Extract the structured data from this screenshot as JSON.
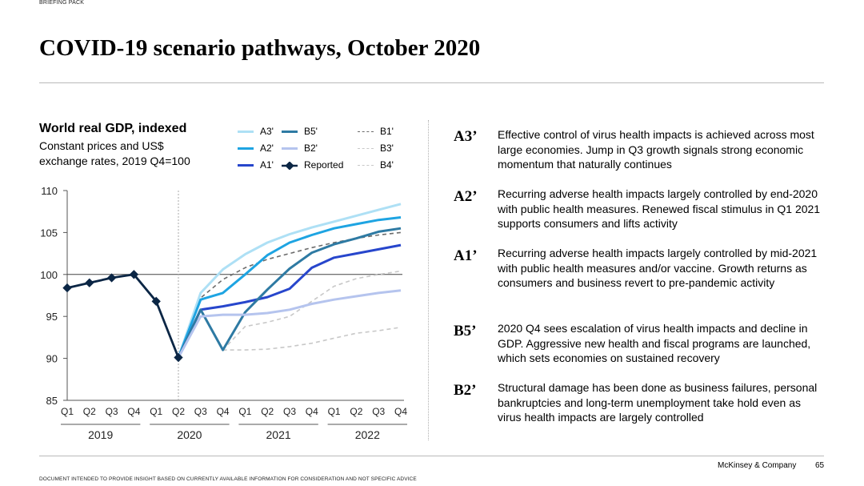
{
  "header": {
    "brief": "BRIEFING PACK",
    "title": "COVID-19 scenario pathways, October 2020"
  },
  "chart_data": {
    "type": "line",
    "title": "World real GDP, indexed",
    "subtitle": "Constant prices and US$ exchange rates, 2019 Q4=100",
    "subtitle_lines": [
      "Constant prices and US$",
      "exchange rates, 2019 Q4=100"
    ],
    "quarters": [
      "Q1",
      "Q2",
      "Q3",
      "Q4",
      "Q1",
      "Q2",
      "Q3",
      "Q4",
      "Q1",
      "Q2",
      "Q3",
      "Q4",
      "Q1",
      "Q2",
      "Q3",
      "Q4"
    ],
    "years": [
      "2019",
      "2020",
      "2021",
      "2022"
    ],
    "yticks": [
      110,
      105,
      100,
      95,
      90,
      85
    ],
    "ylim": [
      85,
      110
    ],
    "reference_line": 100,
    "series": [
      {
        "name": "Reported",
        "color": "#0b2645",
        "style": "solid-marker",
        "start": 0,
        "values": [
          98.4,
          99.0,
          99.6,
          100.0,
          96.8,
          90.1
        ]
      },
      {
        "name": "A3'",
        "color": "#aee0f5",
        "style": "solid",
        "start": 5,
        "values": [
          90.1,
          97.8,
          100.6,
          102.4,
          103.8,
          104.8,
          105.6,
          106.3,
          107.0,
          107.7,
          108.4
        ]
      },
      {
        "name": "A2'",
        "color": "#1ea4e2",
        "style": "solid",
        "start": 5,
        "values": [
          90.1,
          97.0,
          97.8,
          100.0,
          102.3,
          103.8,
          104.7,
          105.5,
          106.0,
          106.5,
          106.8
        ]
      },
      {
        "name": "A1'",
        "color": "#2746cc",
        "style": "solid",
        "start": 5,
        "values": [
          90.1,
          95.8,
          96.2,
          96.7,
          97.3,
          98.3,
          100.8,
          102.0,
          102.5,
          103.0,
          103.5
        ]
      },
      {
        "name": "B5'",
        "color": "#2e7aa3",
        "style": "solid",
        "start": 5,
        "values": [
          90.1,
          95.8,
          91.0,
          95.5,
          98.2,
          100.7,
          102.6,
          103.6,
          104.3,
          105.1,
          105.5
        ]
      },
      {
        "name": "B2'",
        "color": "#b5c4ee",
        "style": "solid",
        "start": 5,
        "values": [
          90.1,
          95.0,
          95.2,
          95.2,
          95.4,
          95.8,
          96.5,
          97.0,
          97.4,
          97.8,
          98.1
        ]
      },
      {
        "name": "B1'",
        "color": "#6b6b6b",
        "style": "dashed",
        "start": 5,
        "values": [
          90.1,
          97.2,
          99.4,
          100.8,
          101.8,
          102.5,
          103.2,
          103.8,
          104.3,
          104.7,
          105.0
        ]
      },
      {
        "name": "B3'",
        "color": "#c8c8c8",
        "style": "dashed",
        "start": 7,
        "values": [
          91.0,
          93.8,
          94.3,
          95.0,
          96.8,
          98.6,
          99.5,
          100.0,
          100.4
        ]
      },
      {
        "name": "B4'",
        "color": "#c8c8c8",
        "style": "dashed",
        "start": 7,
        "values": [
          91.0,
          91.0,
          91.1,
          91.4,
          91.8,
          92.4,
          93.0,
          93.3,
          93.7
        ]
      }
    ],
    "legend": [
      {
        "label": "A3'",
        "color": "#aee0f5",
        "style": "solid"
      },
      {
        "label": "A2'",
        "color": "#1ea4e2",
        "style": "solid"
      },
      {
        "label": "A1'",
        "color": "#2746cc",
        "style": "solid"
      },
      {
        "label": "B5'",
        "color": "#2e7aa3",
        "style": "solid"
      },
      {
        "label": "B2'",
        "color": "#b5c4ee",
        "style": "solid"
      },
      {
        "label": "Reported",
        "color": "#0b2645",
        "style": "marker"
      },
      {
        "label": "B1'",
        "color": "#6b6b6b",
        "style": "dashed"
      },
      {
        "label": "B3'",
        "color": "#c8c8c8",
        "style": "dashed"
      },
      {
        "label": "B4'",
        "color": "#c8c8c8",
        "style": "dashed"
      }
    ]
  },
  "scenarios": [
    {
      "code": "A3’",
      "text": "Effective control of virus health impacts is achieved across most large economies. Jump in Q3 growth signals strong economic momentum that naturally continues"
    },
    {
      "code": "A2’",
      "text": "Recurring adverse health impacts largely controlled by end-2020 with public health measures. Renewed fiscal stimulus in Q1 2021 supports consumers and lifts activity"
    },
    {
      "code": "A1’",
      "text": "Recurring adverse health impacts largely controlled by mid-2021 with public health measures and/or vaccine. Growth returns as consumers and business revert to pre-pandemic activity"
    },
    {
      "code": "B5’",
      "text": "2020 Q4 sees escalation of virus health impacts and decline in GDP. Aggressive new health and fiscal programs are launched, which sets economies on sustained recovery"
    },
    {
      "code": "B2’",
      "text": "Structural damage has been done as business failures, personal bankruptcies and long-term unemployment take hold even as virus health impacts are largely controlled"
    }
  ],
  "footer": {
    "company": "McKinsey & Company",
    "page": "65",
    "disclaimer": "DOCUMENT INTENDED TO PROVIDE INSIGHT BASED ON CURRENTLY AVAILABLE INFORMATION FOR CONSIDERATION AND NOT SPECIFIC ADVICE"
  }
}
